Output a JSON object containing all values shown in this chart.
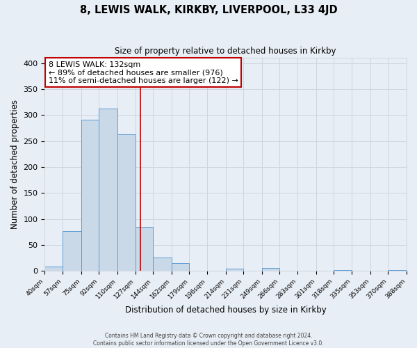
{
  "title": "8, LEWIS WALK, KIRKBY, LIVERPOOL, L33 4JD",
  "subtitle": "Size of property relative to detached houses in Kirkby",
  "xlabel": "Distribution of detached houses by size in Kirkby",
  "ylabel": "Number of detached properties",
  "footer_line1": "Contains HM Land Registry data © Crown copyright and database right 2024.",
  "footer_line2": "Contains public sector information licensed under the Open Government Licence v3.0.",
  "bin_edges": [
    40,
    57,
    75,
    92,
    110,
    127,
    144,
    162,
    179,
    196,
    214,
    231,
    249,
    266,
    283,
    301,
    318,
    335,
    353,
    370,
    388
  ],
  "bin_counts": [
    8,
    77,
    291,
    312,
    263,
    85,
    26,
    15,
    0,
    0,
    5,
    0,
    6,
    0,
    0,
    0,
    2,
    0,
    0,
    2
  ],
  "bar_facecolor": "#c9d9e8",
  "bar_edgecolor": "#5b9bd5",
  "vline_x": 132,
  "vline_color": "#c00000",
  "annotation_text": "8 LEWIS WALK: 132sqm\n← 89% of detached houses are smaller (976)\n11% of semi-detached houses are larger (122) →",
  "annotation_box_edgecolor": "#c00000",
  "annotation_box_facecolor": "#ffffff",
  "ylim": [
    0,
    410
  ],
  "yticks": [
    0,
    50,
    100,
    150,
    200,
    250,
    300,
    350,
    400
  ],
  "grid_color": "#cdd5df",
  "background_color": "#e8eef5",
  "tick_labels": [
    "40sqm",
    "57sqm",
    "75sqm",
    "92sqm",
    "110sqm",
    "127sqm",
    "144sqm",
    "162sqm",
    "179sqm",
    "196sqm",
    "214sqm",
    "231sqm",
    "249sqm",
    "266sqm",
    "283sqm",
    "301sqm",
    "318sqm",
    "335sqm",
    "353sqm",
    "370sqm",
    "388sqm"
  ]
}
